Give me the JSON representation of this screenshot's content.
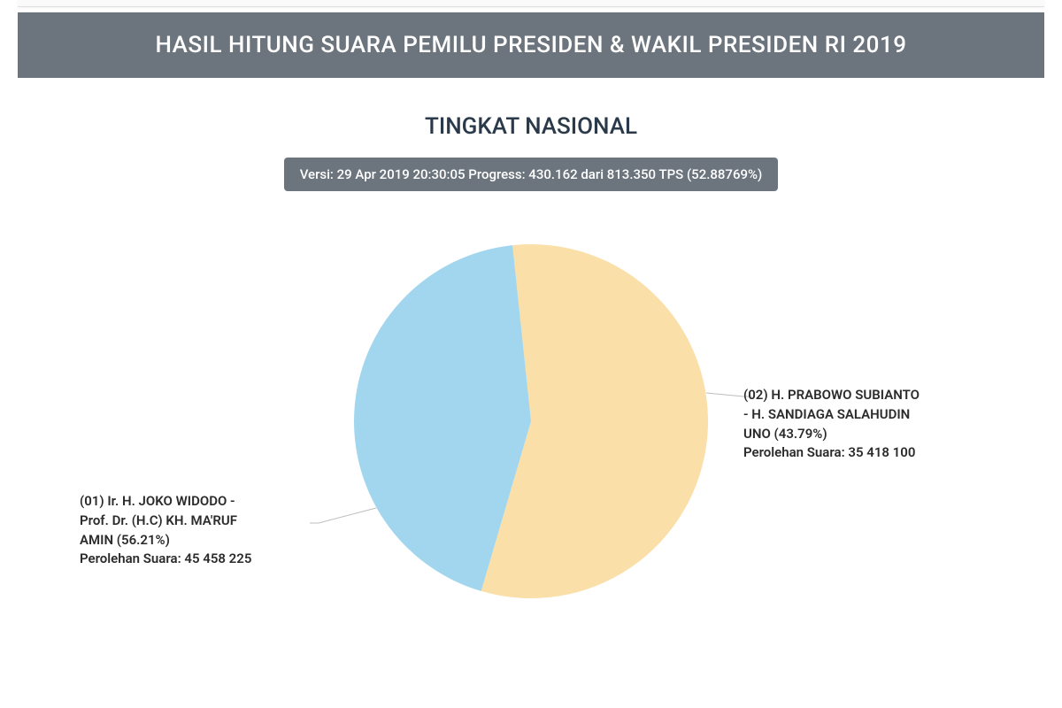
{
  "banner": {
    "title": "HASIL HITUNG SUARA PEMILU PRESIDEN & WAKIL PRESIDEN RI 2019",
    "background_color": "#6c757d",
    "text_color": "#ffffff",
    "font_size": 26
  },
  "subtitle": {
    "text": "TINGKAT NASIONAL",
    "text_color": "#2b3a4a",
    "font_size": 26
  },
  "version_pill": {
    "text": "Versi: 29 Apr 2019 20:30:05 Progress: 430.162 dari 813.350 TPS (52.88769%)",
    "background_color": "#6c757d",
    "text_color": "#ffffff",
    "font_size": 15
  },
  "pie_chart": {
    "type": "pie",
    "radius": 200,
    "start_angle_deg": -6,
    "background_color": "#ffffff",
    "slices": [
      {
        "id": "candidate-01",
        "name_line1": "(01) Ir. H. JOKO WIDODO -",
        "name_line2": "Prof. Dr. (H.C) KH. MA'RUF",
        "name_line3": "AMIN (56.21%)",
        "votes_label": "Perolehan Suara: 45 458 225",
        "percent": 56.21,
        "color": "#fadfa8"
      },
      {
        "id": "candidate-02",
        "name_line1": "(02) H. PRABOWO SUBIANTO",
        "name_line2": "- H. SANDIAGA SALAHUDIN",
        "name_line3": "UNO (43.79%)",
        "votes_label": "Perolehan Suara: 35 418 100",
        "percent": 43.79,
        "color": "#a1d6ee"
      }
    ]
  },
  "labels": {
    "text_color": "#2b2b2b",
    "font_size": 15
  },
  "leader_lines": {
    "color": "#bdbdbd"
  }
}
